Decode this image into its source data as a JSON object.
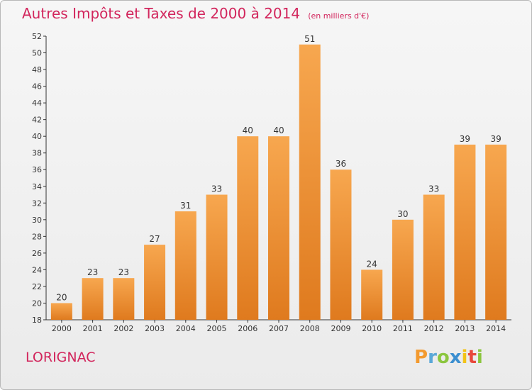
{
  "header": {
    "title": "Autres Impôts et Taxes de 2000 à 2014",
    "subtitle": "(en milliers d'€)"
  },
  "footer": {
    "commune": "LORIGNAC",
    "logo_letters": [
      "P",
      "r",
      "o",
      "x",
      "i",
      "t",
      "i"
    ]
  },
  "colors": {
    "title": "#d2255c",
    "bar_light": "#f7a74f",
    "bar_dark": "#df7a1e",
    "axis": "#333333",
    "grid": "#dddddd"
  },
  "chart_data": {
    "type": "bar",
    "title": "Autres Impôts et Taxes de 2000 à 2014",
    "subtitle": "(en milliers d'€)",
    "categories": [
      "2000",
      "2001",
      "2002",
      "2003",
      "2004",
      "2005",
      "2006",
      "2007",
      "2008",
      "2009",
      "2010",
      "2011",
      "2012",
      "2013",
      "2014"
    ],
    "values": [
      20,
      23,
      23,
      27,
      31,
      33,
      40,
      40,
      51,
      36,
      24,
      30,
      33,
      39,
      39
    ],
    "ylim": [
      18,
      52
    ],
    "yticks": [
      18,
      20,
      22,
      24,
      26,
      28,
      30,
      32,
      34,
      36,
      38,
      40,
      42,
      44,
      46,
      48,
      50,
      52
    ],
    "grid": false,
    "data_labels": true
  }
}
